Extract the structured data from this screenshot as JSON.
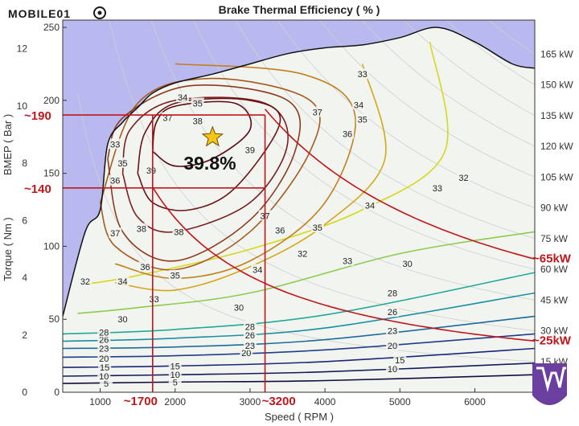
{
  "watermark": "MOBILE01",
  "chart_data": {
    "type": "contour",
    "title": "Brake Thermal Efficiency ( % )",
    "xlabel": "Speed ( RPM )",
    "ylabel_left_outer": "BMEP ( Bar )",
    "ylabel_left_inner": "Torque ( Nm )",
    "xlim": [
      500,
      6800
    ],
    "ylim_torque": [
      0,
      255
    ],
    "ylim_bmep": [
      0,
      13
    ],
    "x_ticks": [
      "1000",
      "2000",
      "3000",
      "4000",
      "5000",
      "6000"
    ],
    "torque_ticks": [
      "0",
      "50",
      "100",
      "150",
      "200",
      "250"
    ],
    "bmep_ticks": [
      "0",
      "2",
      "4",
      "6",
      "8",
      "10",
      "12"
    ],
    "power_lines": [
      {
        "label": "15 kW",
        "kw": 15
      },
      {
        "label": "30 kW",
        "kw": 30
      },
      {
        "label": "45 kW",
        "kw": 45
      },
      {
        "label": "60 kW",
        "kw": 60
      },
      {
        "label": "75 kW",
        "kw": 75
      },
      {
        "label": "90 kW",
        "kw": 90
      },
      {
        "label": "105 kW",
        "kw": 105
      },
      {
        "label": "120 kW",
        "kw": 120
      },
      {
        "label": "135 kW",
        "kw": 135
      },
      {
        "label": "150 kW",
        "kw": 150
      },
      {
        "label": "165 kW",
        "kw": 165
      }
    ],
    "max_torque_curve": [
      [
        500,
        52
      ],
      [
        800,
        110
      ],
      [
        1000,
        125
      ],
      [
        1100,
        170
      ],
      [
        1300,
        185
      ],
      [
        1500,
        195
      ],
      [
        1700,
        205
      ],
      [
        2000,
        212
      ],
      [
        2500,
        218
      ],
      [
        3000,
        225
      ],
      [
        3500,
        232
      ],
      [
        4000,
        236
      ],
      [
        4500,
        238
      ],
      [
        5000,
        243
      ],
      [
        5500,
        250
      ],
      [
        6000,
        240
      ],
      [
        6500,
        225
      ],
      [
        6800,
        222
      ]
    ],
    "contour_levels": [
      {
        "level": 5,
        "color": "#0c0f3d",
        "points": [
          [
            500,
            6
          ],
          [
            2000,
            7
          ],
          [
            4000,
            8
          ],
          [
            6800,
            12
          ]
        ]
      },
      {
        "level": 10,
        "color": "#141a5e",
        "points": [
          [
            500,
            11
          ],
          [
            2000,
            12
          ],
          [
            4000,
            14
          ],
          [
            6800,
            20
          ]
        ]
      },
      {
        "level": 15,
        "color": "#1a2677",
        "points": [
          [
            500,
            17
          ],
          [
            2000,
            18
          ],
          [
            4000,
            21
          ],
          [
            6800,
            30
          ]
        ]
      },
      {
        "level": 20,
        "color": "#1d3d8f",
        "points": [
          [
            500,
            24
          ],
          [
            2000,
            25
          ],
          [
            4000,
            29
          ],
          [
            6800,
            40
          ]
        ]
      },
      {
        "level": 23,
        "color": "#1b6b9e",
        "points": [
          [
            500,
            30
          ],
          [
            2000,
            31
          ],
          [
            4000,
            36
          ],
          [
            6800,
            52
          ]
        ]
      },
      {
        "level": 26,
        "color": "#1a8fa4",
        "points": [
          [
            500,
            35
          ],
          [
            2000,
            37
          ],
          [
            4000,
            44
          ],
          [
            6800,
            68
          ]
        ]
      },
      {
        "level": 28,
        "color": "#20a99a",
        "points": [
          [
            500,
            40
          ],
          [
            2000,
            43
          ],
          [
            4000,
            53
          ],
          [
            6800,
            82
          ]
        ]
      },
      {
        "level": 30,
        "color": "#8bcc4f",
        "points": [
          [
            700,
            54
          ],
          [
            1500,
            58
          ],
          [
            3000,
            68
          ],
          [
            5000,
            95
          ],
          [
            6800,
            110
          ]
        ]
      },
      {
        "level": 32,
        "color": "#d6d81e",
        "points": [
          [
            800,
            74
          ],
          [
            1500,
            80
          ],
          [
            3000,
            98
          ],
          [
            4500,
            125
          ],
          [
            5600,
            165
          ],
          [
            5400,
            240
          ]
        ]
      },
      {
        "level": 33,
        "color": "#d3a719",
        "points": [
          [
            1200,
            75
          ],
          [
            2000,
            70
          ],
          [
            3000,
            86
          ],
          [
            4000,
            115
          ],
          [
            4800,
            160
          ],
          [
            4500,
            225
          ]
        ]
      },
      {
        "level": 34,
        "color": "#c2801d",
        "points": [
          [
            1200,
            88
          ],
          [
            2000,
            78
          ],
          [
            3000,
            90
          ],
          [
            4000,
            130
          ],
          [
            4400,
            190
          ],
          [
            3700,
            218
          ],
          [
            2000,
            225
          ]
        ]
      },
      {
        "level": 35,
        "color": "#a65a1e",
        "points": [
          [
            1000,
            130
          ],
          [
            1200,
            100
          ],
          [
            2000,
            84
          ],
          [
            3000,
            110
          ],
          [
            3800,
            165
          ],
          [
            3800,
            200
          ],
          [
            2500,
            215
          ],
          [
            1500,
            198
          ]
        ]
      },
      {
        "level": 36,
        "color": "#8d3a1e",
        "points": [
          [
            1100,
            160
          ],
          [
            1300,
            110
          ],
          [
            2000,
            90
          ],
          [
            3000,
            118
          ],
          [
            3600,
            165
          ],
          [
            3500,
            200
          ],
          [
            2200,
            210
          ],
          [
            1300,
            188
          ]
        ]
      },
      {
        "level": 37,
        "color": "#7a1f1f",
        "points": [
          [
            1300,
            150
          ],
          [
            1500,
            120
          ],
          [
            2000,
            110
          ],
          [
            3000,
            130
          ],
          [
            3500,
            170
          ],
          [
            3200,
            198
          ],
          [
            2000,
            200
          ],
          [
            1400,
            180
          ]
        ]
      },
      {
        "level": 38,
        "color": "#6a1214",
        "points": [
          [
            1500,
            150
          ],
          [
            1700,
            130
          ],
          [
            2200,
            125
          ],
          [
            2800,
            140
          ],
          [
            3400,
            185
          ],
          [
            3000,
            200
          ],
          [
            2000,
            198
          ],
          [
            1600,
            178
          ]
        ]
      },
      {
        "level": 39,
        "color": "#5a0a10",
        "points": [
          [
            1700,
            165
          ],
          [
            2000,
            155
          ],
          [
            2500,
            160
          ],
          [
            3000,
            180
          ],
          [
            2800,
            198
          ],
          [
            2000,
            196
          ],
          [
            1750,
            185
          ]
        ]
      }
    ],
    "contour_labels": [
      {
        "text": "5",
        "x": 1080,
        "y": 6
      },
      {
        "text": "5",
        "x": 2000,
        "y": 7
      },
      {
        "text": "10",
        "x": 1050,
        "y": 11
      },
      {
        "text": "10",
        "x": 2000,
        "y": 12
      },
      {
        "text": "10",
        "x": 4900,
        "y": 16
      },
      {
        "text": "15",
        "x": 1060,
        "y": 17
      },
      {
        "text": "15",
        "x": 2000,
        "y": 18
      },
      {
        "text": "15",
        "x": 5000,
        "y": 22
      },
      {
        "text": "20",
        "x": 1050,
        "y": 23
      },
      {
        "text": "20",
        "x": 2950,
        "y": 27
      },
      {
        "text": "20",
        "x": 4900,
        "y": 32
      },
      {
        "text": "23",
        "x": 1050,
        "y": 30
      },
      {
        "text": "23",
        "x": 3000,
        "y": 32
      },
      {
        "text": "23",
        "x": 4900,
        "y": 42
      },
      {
        "text": "26",
        "x": 1050,
        "y": 36
      },
      {
        "text": "26",
        "x": 3000,
        "y": 39
      },
      {
        "text": "26",
        "x": 4900,
        "y": 55
      },
      {
        "text": "28",
        "x": 1050,
        "y": 41
      },
      {
        "text": "28",
        "x": 3000,
        "y": 45
      },
      {
        "text": "28",
        "x": 4900,
        "y": 68
      },
      {
        "text": "30",
        "x": 1300,
        "y": 50
      },
      {
        "text": "30",
        "x": 2850,
        "y": 58
      },
      {
        "text": "30",
        "x": 5100,
        "y": 88
      },
      {
        "text": "32",
        "x": 800,
        "y": 76
      },
      {
        "text": "32",
        "x": 3700,
        "y": 95
      },
      {
        "text": "32",
        "x": 5850,
        "y": 147
      },
      {
        "text": "33",
        "x": 1720,
        "y": 64
      },
      {
        "text": "33",
        "x": 4300,
        "y": 90
      },
      {
        "text": "33",
        "x": 5500,
        "y": 140
      },
      {
        "text": "33",
        "x": 4500,
        "y": 218
      },
      {
        "text": "33",
        "x": 1200,
        "y": 170
      },
      {
        "text": "34",
        "x": 1300,
        "y": 76
      },
      {
        "text": "34",
        "x": 3100,
        "y": 84
      },
      {
        "text": "34",
        "x": 4600,
        "y": 128
      },
      {
        "text": "34",
        "x": 4450,
        "y": 197
      },
      {
        "text": "34",
        "x": 2100,
        "y": 202
      },
      {
        "text": "35",
        "x": 2000,
        "y": 80
      },
      {
        "text": "35",
        "x": 3900,
        "y": 113
      },
      {
        "text": "35",
        "x": 4500,
        "y": 187
      },
      {
        "text": "35",
        "x": 2300,
        "y": 198
      },
      {
        "text": "35",
        "x": 1300,
        "y": 157
      },
      {
        "text": "36",
        "x": 1600,
        "y": 86
      },
      {
        "text": "36",
        "x": 3400,
        "y": 111
      },
      {
        "text": "36",
        "x": 4300,
        "y": 177
      },
      {
        "text": "36",
        "x": 1200,
        "y": 145
      },
      {
        "text": "37",
        "x": 1200,
        "y": 109
      },
      {
        "text": "37",
        "x": 3200,
        "y": 121
      },
      {
        "text": "37",
        "x": 3900,
        "y": 192
      },
      {
        "text": "37",
        "x": 1900,
        "y": 188
      },
      {
        "text": "38",
        "x": 1550,
        "y": 112
      },
      {
        "text": "38",
        "x": 2050,
        "y": 110
      },
      {
        "text": "38",
        "x": 2300,
        "y": 186
      },
      {
        "text": "39",
        "x": 1680,
        "y": 152
      },
      {
        "text": "39",
        "x": 3000,
        "y": 166
      }
    ],
    "peak": {
      "label": "39.8%",
      "x": 2500,
      "y": 167
    },
    "annotations": {
      "torque_190": "~190",
      "torque_140": "~140",
      "rpm_1700": "~1700",
      "rpm_3200": "~3200",
      "power_65": "~65kW",
      "power_25": "~25kW"
    },
    "highlight_box": {
      "x1": 1700,
      "x2": 3200,
      "y1": 140,
      "y2": 190
    },
    "hyperbolas_kw": [
      65,
      25
    ],
    "colors": {
      "invalid_region": "#b9b9f0",
      "background": "#f2f4f0",
      "annotation": "#c0161c",
      "star": "#f5c518",
      "power_grid": "#cfcfcf"
    },
    "legend": "none",
    "grid": false
  }
}
